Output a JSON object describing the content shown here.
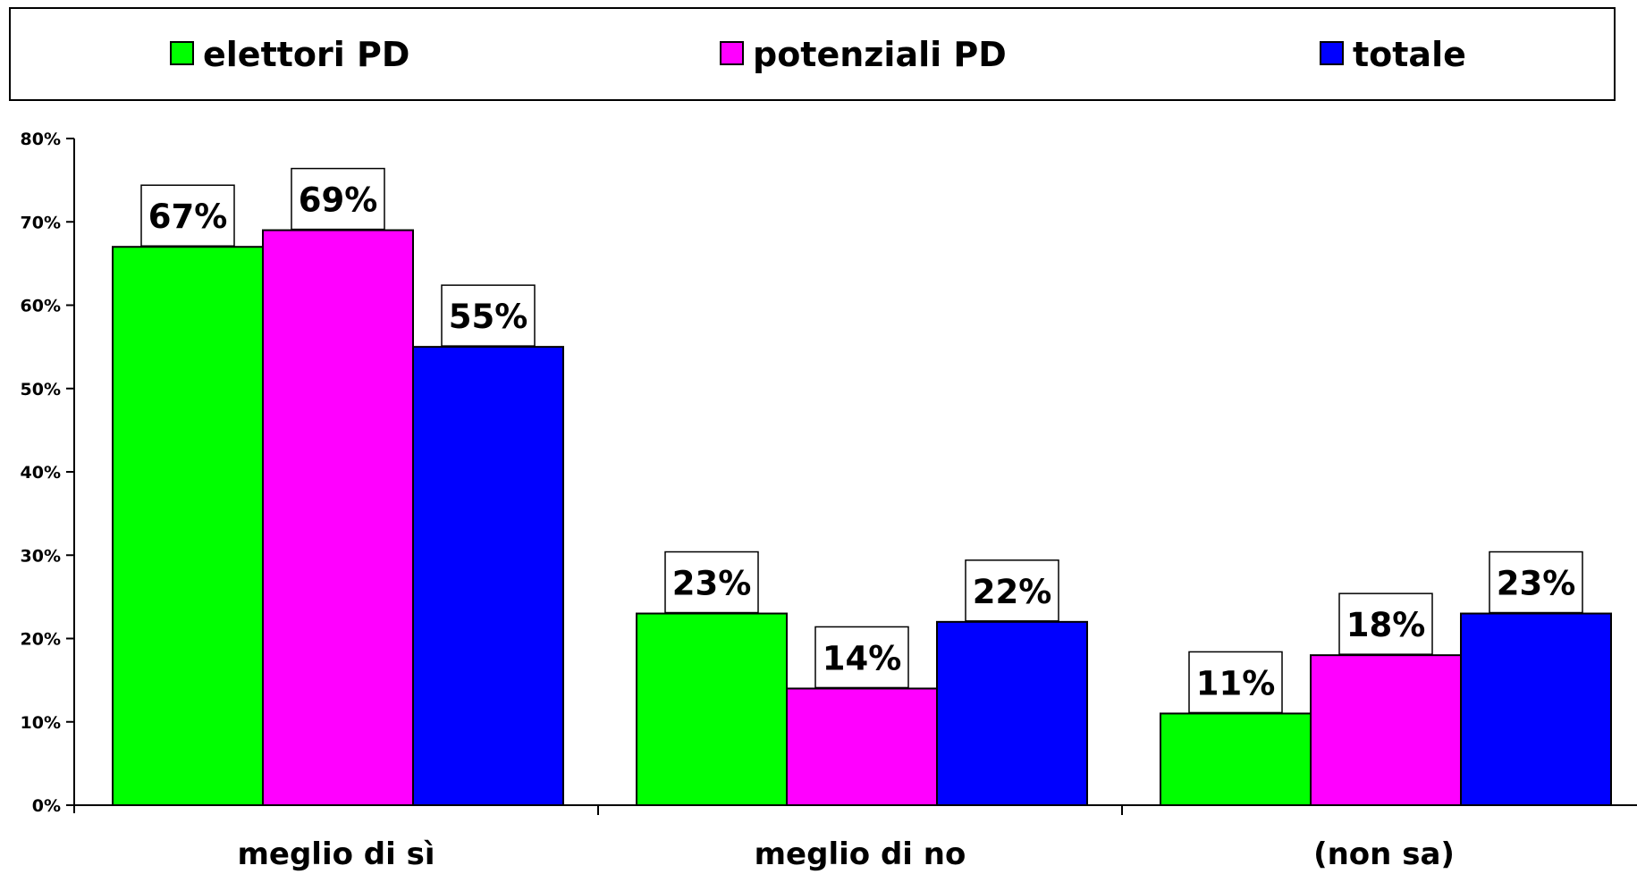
{
  "chart_data": {
    "type": "bar",
    "categories": [
      "meglio di sì",
      "meglio di no",
      "(non sa)"
    ],
    "series": [
      {
        "name": "elettori PD",
        "color": "#00ff00",
        "values": [
          67,
          23,
          11
        ]
      },
      {
        "name": "potenziali PD",
        "color": "#ff00ff",
        "values": [
          69,
          14,
          18
        ]
      },
      {
        "name": "totale",
        "color": "#0000ff",
        "values": [
          55,
          22,
          23
        ]
      }
    ],
    "data_labels": [
      [
        "67%",
        "23%",
        "11%"
      ],
      [
        "69%",
        "14%",
        "18%"
      ],
      [
        "55%",
        "22%",
        "23%"
      ]
    ],
    "yticks": [
      "0%",
      "10%",
      "20%",
      "30%",
      "40%",
      "50%",
      "60%",
      "70%",
      "80%"
    ],
    "ylim": [
      0,
      80
    ],
    "legend_position": "top",
    "grid": false,
    "title": "",
    "xlabel": "",
    "ylabel": ""
  }
}
